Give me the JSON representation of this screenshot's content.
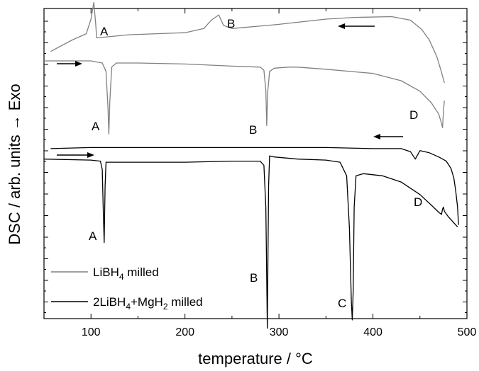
{
  "chart_data": {
    "type": "line",
    "xlabel": "temperature / °C",
    "ylabel": "DSC / arb. units → Exo",
    "xlim": [
      50,
      500
    ],
    "x_ticks": [
      "100",
      "200",
      "300",
      "400",
      "500"
    ],
    "y_ticks_labeled": false,
    "grid": false,
    "legend_position": "bottom-left",
    "series": [
      {
        "name": "LiBH₄ milled",
        "legend": {
          "main": "LiBH",
          "sub1": "4",
          "rest": " milled"
        },
        "color": "#808080",
        "segments": [
          {
            "role": "cooling",
            "points": [
              [
                57,
                0.45
              ],
              [
                80,
                1.0
              ],
              [
                95,
                1.3
              ],
              [
                100,
                2.0
              ],
              [
                103,
                2.8
              ],
              [
                105,
                1.8
              ],
              [
                106,
                1.1
              ],
              [
                140,
                1.25
              ],
              [
                200,
                1.35
              ],
              [
                220,
                1.55
              ],
              [
                228,
                1.95
              ],
              [
                236,
                2.2
              ],
              [
                241,
                1.7
              ],
              [
                250,
                1.55
              ],
              [
                300,
                1.75
              ],
              [
                350,
                2.0
              ],
              [
                380,
                2.08
              ],
              [
                420,
                2.12
              ],
              [
                440,
                1.95
              ],
              [
                452,
                1.5
              ],
              [
                460,
                1.0
              ],
              [
                468,
                0.2
              ],
              [
                473,
                -0.55
              ],
              [
                476,
                -1.05
              ]
            ]
          },
          {
            "role": "heating",
            "points": [
              [
                50,
                0.0
              ],
              [
                100,
                0.0
              ],
              [
                112,
                -0.1
              ],
              [
                116,
                -0.5
              ],
              [
                118,
                -2.2
              ],
              [
                119,
                -3.5
              ],
              [
                120,
                -2.0
              ],
              [
                122,
                -0.3
              ],
              [
                127,
                -0.1
              ],
              [
                150,
                -0.1
              ],
              [
                200,
                -0.15
              ],
              [
                250,
                -0.25
              ],
              [
                280,
                -0.3
              ],
              [
                284,
                -0.45
              ],
              [
                286,
                -1.4
              ],
              [
                287,
                -3.1
              ],
              [
                288,
                -1.5
              ],
              [
                290,
                -0.5
              ],
              [
                295,
                -0.35
              ],
              [
                310,
                -0.3
              ],
              [
                320,
                -0.3
              ],
              [
                350,
                -0.4
              ],
              [
                400,
                -0.6
              ],
              [
                430,
                -0.95
              ],
              [
                450,
                -1.45
              ],
              [
                462,
                -2.0
              ],
              [
                470,
                -2.55
              ],
              [
                473,
                -3.0
              ],
              [
                474,
                -3.2
              ],
              [
                475,
                -2.4
              ],
              [
                476,
                -1.9
              ]
            ]
          }
        ]
      },
      {
        "name": "2LiBH₄+MgH₂ milled",
        "legend": {
          "main": "2LiBH",
          "sub1": "4",
          "mid": "+MgH",
          "sub2": "2",
          "rest": " milled"
        },
        "color": "#000000",
        "segments": [
          {
            "role": "cooling",
            "points": [
              [
                57,
                -4.2
              ],
              [
                100,
                -4.15
              ],
              [
                150,
                -4.15
              ],
              [
                200,
                -4.15
              ],
              [
                250,
                -4.15
              ],
              [
                300,
                -4.15
              ],
              [
                350,
                -4.15
              ],
              [
                400,
                -4.2
              ],
              [
                430,
                -4.2
              ],
              [
                440,
                -4.35
              ],
              [
                445,
                -4.7
              ],
              [
                450,
                -4.3
              ],
              [
                460,
                -4.4
              ],
              [
                470,
                -4.6
              ],
              [
                478,
                -4.8
              ],
              [
                483,
                -5.15
              ],
              [
                486,
                -5.6
              ],
              [
                488,
                -6.2
              ],
              [
                490,
                -7.0
              ],
              [
                491,
                -7.85
              ]
            ]
          },
          {
            "role": "heating",
            "points": [
              [
                50,
                -4.7
              ],
              [
                100,
                -4.75
              ],
              [
                110,
                -4.8
              ],
              [
                112,
                -5.2
              ],
              [
                113,
                -7.0
              ],
              [
                114,
                -8.7
              ],
              [
                115,
                -6.0
              ],
              [
                116,
                -4.85
              ],
              [
                150,
                -4.85
              ],
              [
                200,
                -4.85
              ],
              [
                250,
                -4.8
              ],
              [
                280,
                -4.8
              ],
              [
                284,
                -5.0
              ],
              [
                286,
                -7.0
              ],
              [
                287,
                -10.5
              ],
              [
                287.6,
                -12.8
              ],
              [
                288,
                -11.0
              ],
              [
                289,
                -6.0
              ],
              [
                290,
                -4.55
              ],
              [
                295,
                -4.6
              ],
              [
                320,
                -4.7
              ],
              [
                350,
                -4.75
              ],
              [
                365,
                -4.85
              ],
              [
                372,
                -5.5
              ],
              [
                375,
                -8.0
              ],
              [
                377,
                -11.5
              ],
              [
                378,
                -12.4
              ],
              [
                379,
                -11.0
              ],
              [
                380,
                -7.0
              ],
              [
                382,
                -5.5
              ],
              [
                390,
                -5.4
              ],
              [
                410,
                -5.5
              ],
              [
                430,
                -5.8
              ],
              [
                450,
                -6.4
              ],
              [
                462,
                -6.9
              ],
              [
                470,
                -7.25
              ],
              [
                473,
                -7.35
              ],
              [
                474,
                -7.1
              ],
              [
                475,
                -7.0
              ],
              [
                476,
                -7.2
              ],
              [
                480,
                -7.45
              ],
              [
                485,
                -7.7
              ],
              [
                488,
                -7.85
              ],
              [
                490,
                -7.95
              ]
            ]
          }
        ]
      }
    ],
    "annotations": [
      {
        "label": "A",
        "series": 0
      },
      {
        "label": "B",
        "series": 0
      },
      {
        "label": "A",
        "series": 0
      },
      {
        "label": "B",
        "series": 0
      },
      {
        "label": "D",
        "series": 0
      },
      {
        "label": "A",
        "series": 1
      },
      {
        "label": "B",
        "series": 1
      },
      {
        "label": "C",
        "series": 1
      },
      {
        "label": "D",
        "series": 1
      }
    ]
  }
}
